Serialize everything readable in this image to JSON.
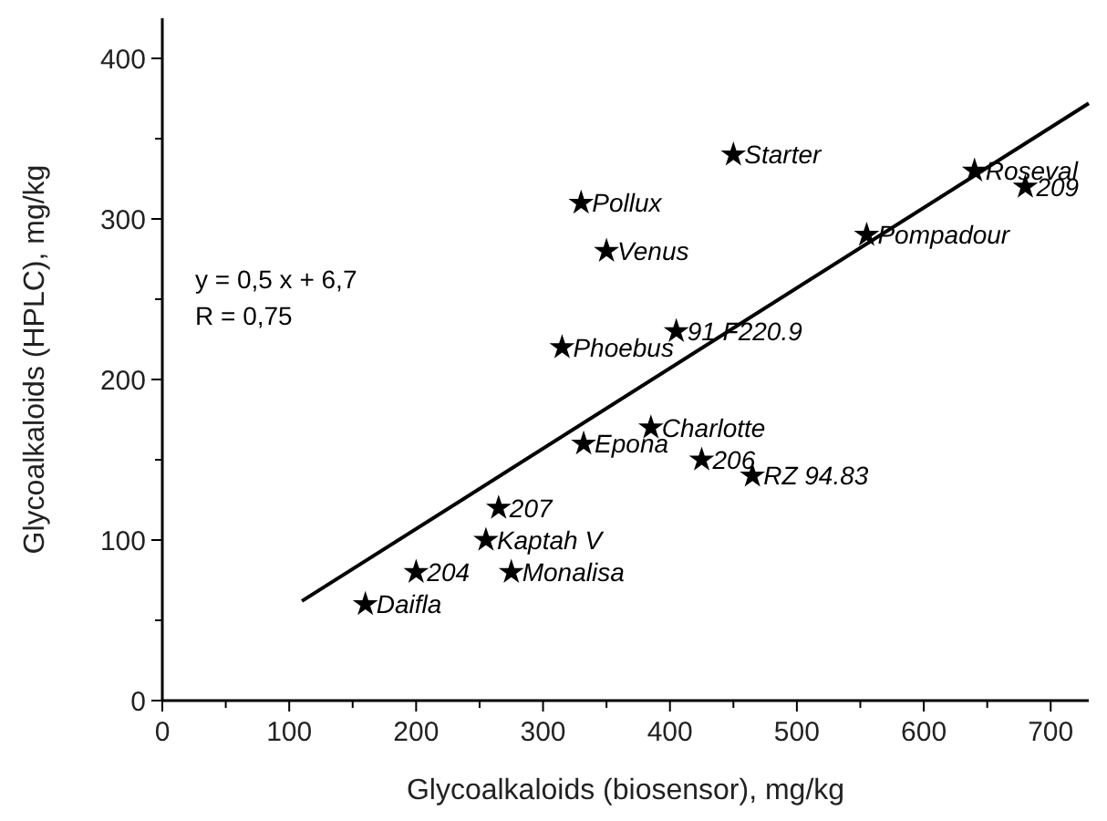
{
  "chart_data": {
    "type": "scatter",
    "xlabel": "Glycoalkaloids (biosensor), mg/kg",
    "ylabel": "Glycoalkaloids (HPLC), mg/kg",
    "xlim": [
      0,
      730
    ],
    "ylim": [
      0,
      425
    ],
    "xticks": [
      0,
      {
        "value": 50,
        "label": null
      },
      100,
      {
        "value": 150,
        "label": null
      },
      200,
      {
        "value": 250,
        "label": null
      },
      300,
      {
        "value": 350,
        "label": null
      },
      400,
      {
        "value": 450,
        "label": null
      },
      500,
      {
        "value": 550,
        "label": null
      },
      600,
      {
        "value": 650,
        "label": null
      },
      700
    ],
    "yticks": [
      0,
      {
        "value": 50,
        "label": null
      },
      100,
      {
        "value": 150,
        "label": null
      },
      200,
      {
        "value": 250,
        "label": null
      },
      300,
      {
        "value": 350,
        "label": null
      },
      400
    ],
    "grid": false,
    "series": [
      {
        "color": "#000000",
        "marker": "star",
        "x": [
          450,
          330,
          350,
          315,
          405,
          640,
          680,
          555,
          385,
          332,
          425,
          465,
          265,
          255,
          200,
          275,
          160
        ],
        "values": [
          340,
          310,
          280,
          220,
          230,
          330,
          320,
          290,
          170,
          160,
          150,
          140,
          120,
          100,
          80,
          80,
          60
        ]
      },
      {
        "type": "line",
        "color": "#000000",
        "marker": "none",
        "line_style": "solid",
        "x": [
          110,
          730
        ],
        "values": [
          62,
          372
        ]
      }
    ],
    "annotations": [
      "y = 0,5 x + 6,7",
      "R = 0,75",
      {
        "text": "Starter",
        "x": 450,
        "y": 340
      },
      {
        "text": "Pollux",
        "x": 330,
        "y": 310
      },
      {
        "text": "Venus",
        "x": 350,
        "y": 280
      },
      {
        "text": "Phoebus",
        "x": 315,
        "y": 220
      },
      {
        "text": "91 F220.9",
        "x": 405,
        "y": 230
      },
      {
        "text": "Roseval",
        "x": 640,
        "y": 330
      },
      {
        "text": "209",
        "x": 680,
        "y": 320
      },
      {
        "text": "Pompadour",
        "x": 555,
        "y": 290
      },
      {
        "text": "Charlotte",
        "x": 385,
        "y": 170
      },
      {
        "text": "Epona",
        "x": 332,
        "y": 160
      },
      {
        "text": "206",
        "x": 425,
        "y": 150
      },
      {
        "text": "RZ 94.83",
        "x": 465,
        "y": 140
      },
      {
        "text": "207",
        "x": 265,
        "y": 120
      },
      {
        "text": "Kaptah V",
        "x": 255,
        "y": 100
      },
      {
        "text": "204",
        "x": 200,
        "y": 80
      },
      {
        "text": "Monalisa",
        "x": 275,
        "y": 80
      },
      {
        "text": "Daifla",
        "x": 160,
        "y": 60
      }
    ]
  }
}
